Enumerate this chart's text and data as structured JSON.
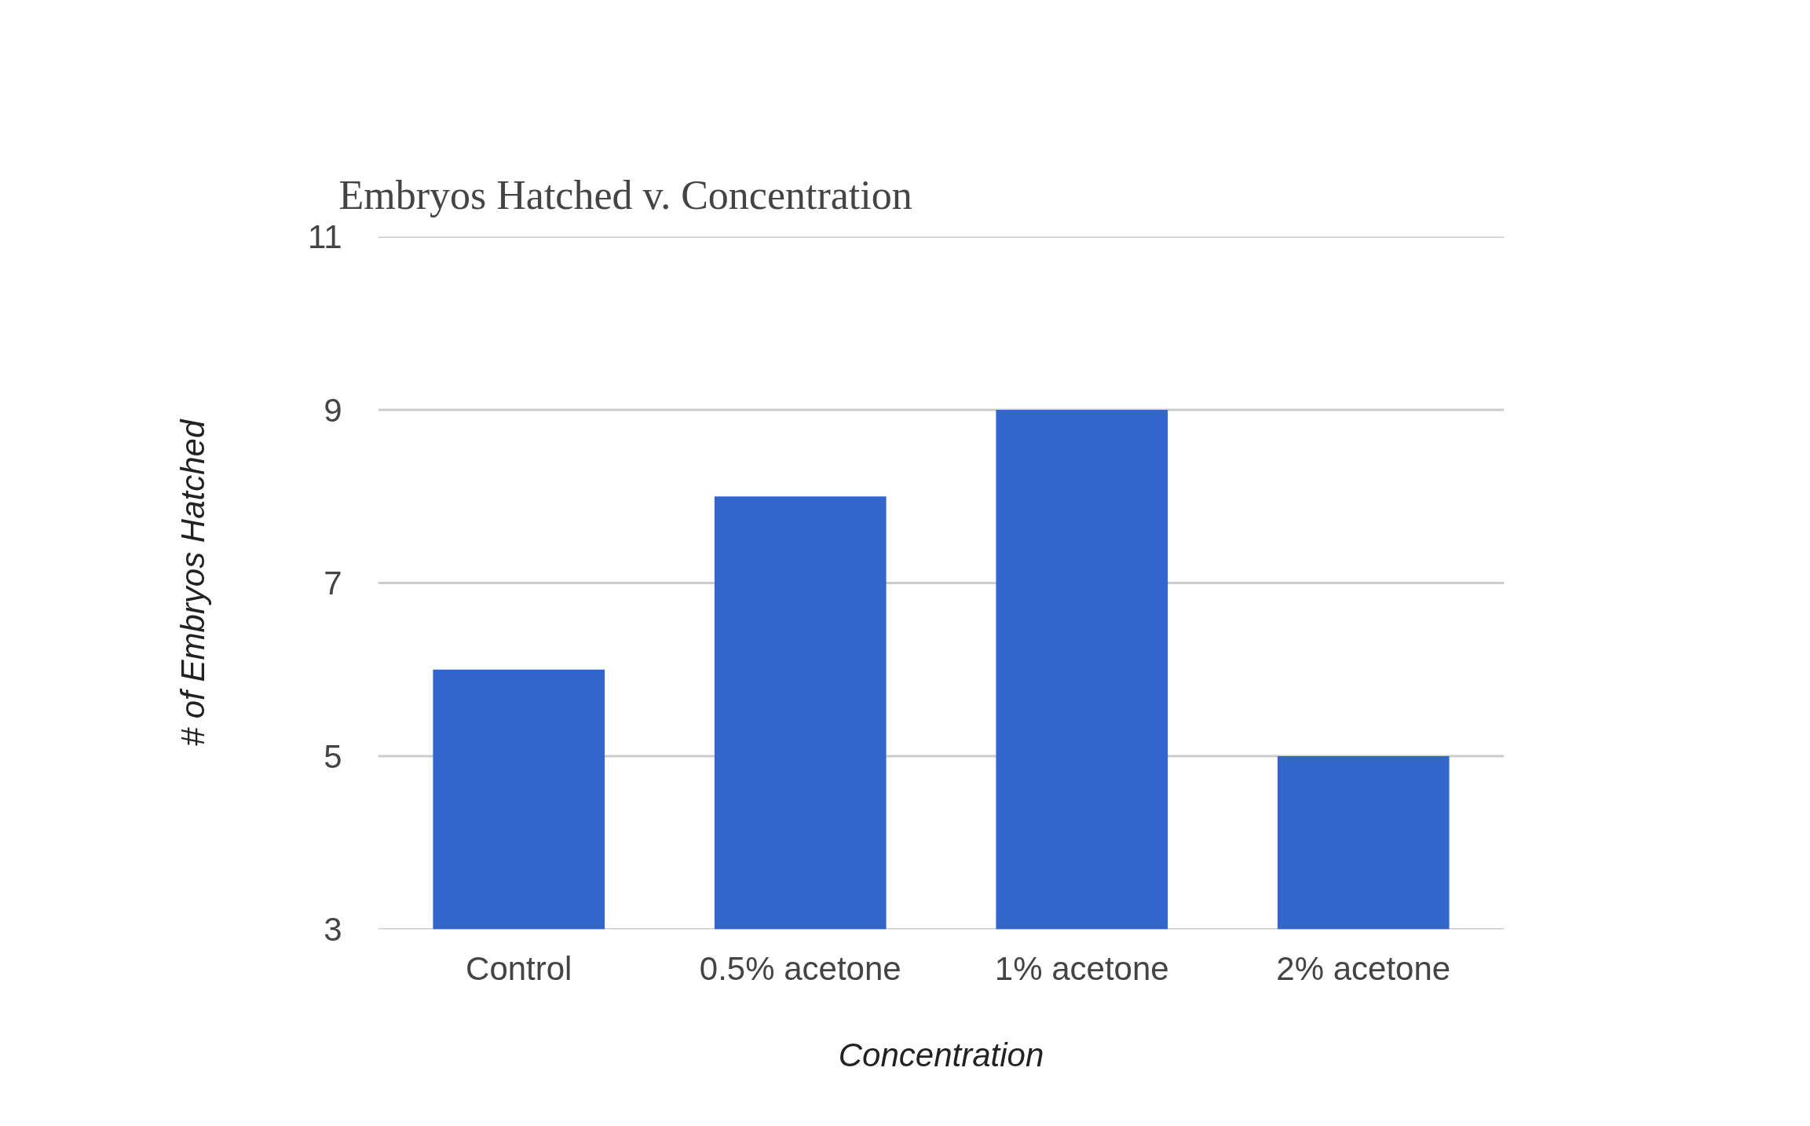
{
  "chart_data": {
    "type": "bar",
    "title": "Embryos Hatched v. Concentration",
    "xlabel": "Concentration",
    "ylabel": "# of Embryos Hatched",
    "categories": [
      "Control",
      "0.5% acetone",
      "1% acetone",
      "2% acetone"
    ],
    "series": [
      {
        "color": "#3366cc",
        "values": [
          6,
          8,
          9,
          5
        ]
      }
    ],
    "ylim": [
      3,
      11
    ],
    "yticks": [
      3,
      5,
      7,
      9,
      11
    ],
    "grid": "y"
  }
}
